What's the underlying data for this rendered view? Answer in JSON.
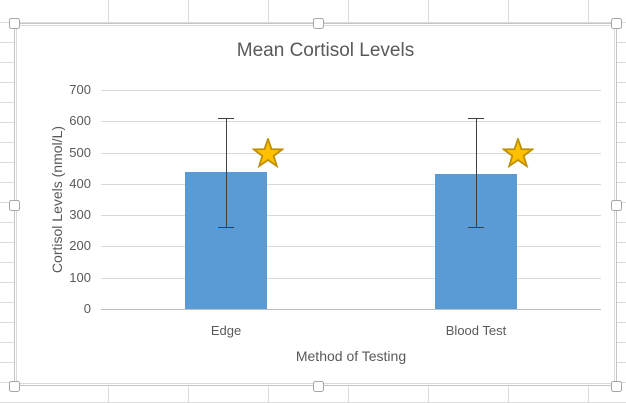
{
  "state": {
    "chart_selected": true
  },
  "chart_data": {
    "type": "bar",
    "title": "Mean Cortisol Levels",
    "xlabel": "Method of Testing",
    "ylabel": "Cortisol Levels (nmol/L)",
    "categories": [
      "Edge",
      "Blood Test"
    ],
    "values": [
      437,
      433
    ],
    "error_bars": [
      {
        "low": 262,
        "high": 612
      },
      {
        "low": 263,
        "high": 609
      }
    ],
    "annotations": [
      {
        "shape": "star",
        "category": "Edge",
        "value": 500
      },
      {
        "shape": "star",
        "category": "Blood Test",
        "value": 500
      }
    ],
    "ylim": [
      0,
      700
    ],
    "yticks": [
      0,
      100,
      200,
      300,
      400,
      500,
      600,
      700
    ],
    "grid": true,
    "legend": false,
    "colors": {
      "bar": "#5B9BD5",
      "star_fill": "#FFC000",
      "star_border": "#BF8F00",
      "gridline": "#D9D9D9",
      "axis_line": "#BFBFBF",
      "error_bar": "#404040",
      "text": "#595959"
    }
  }
}
